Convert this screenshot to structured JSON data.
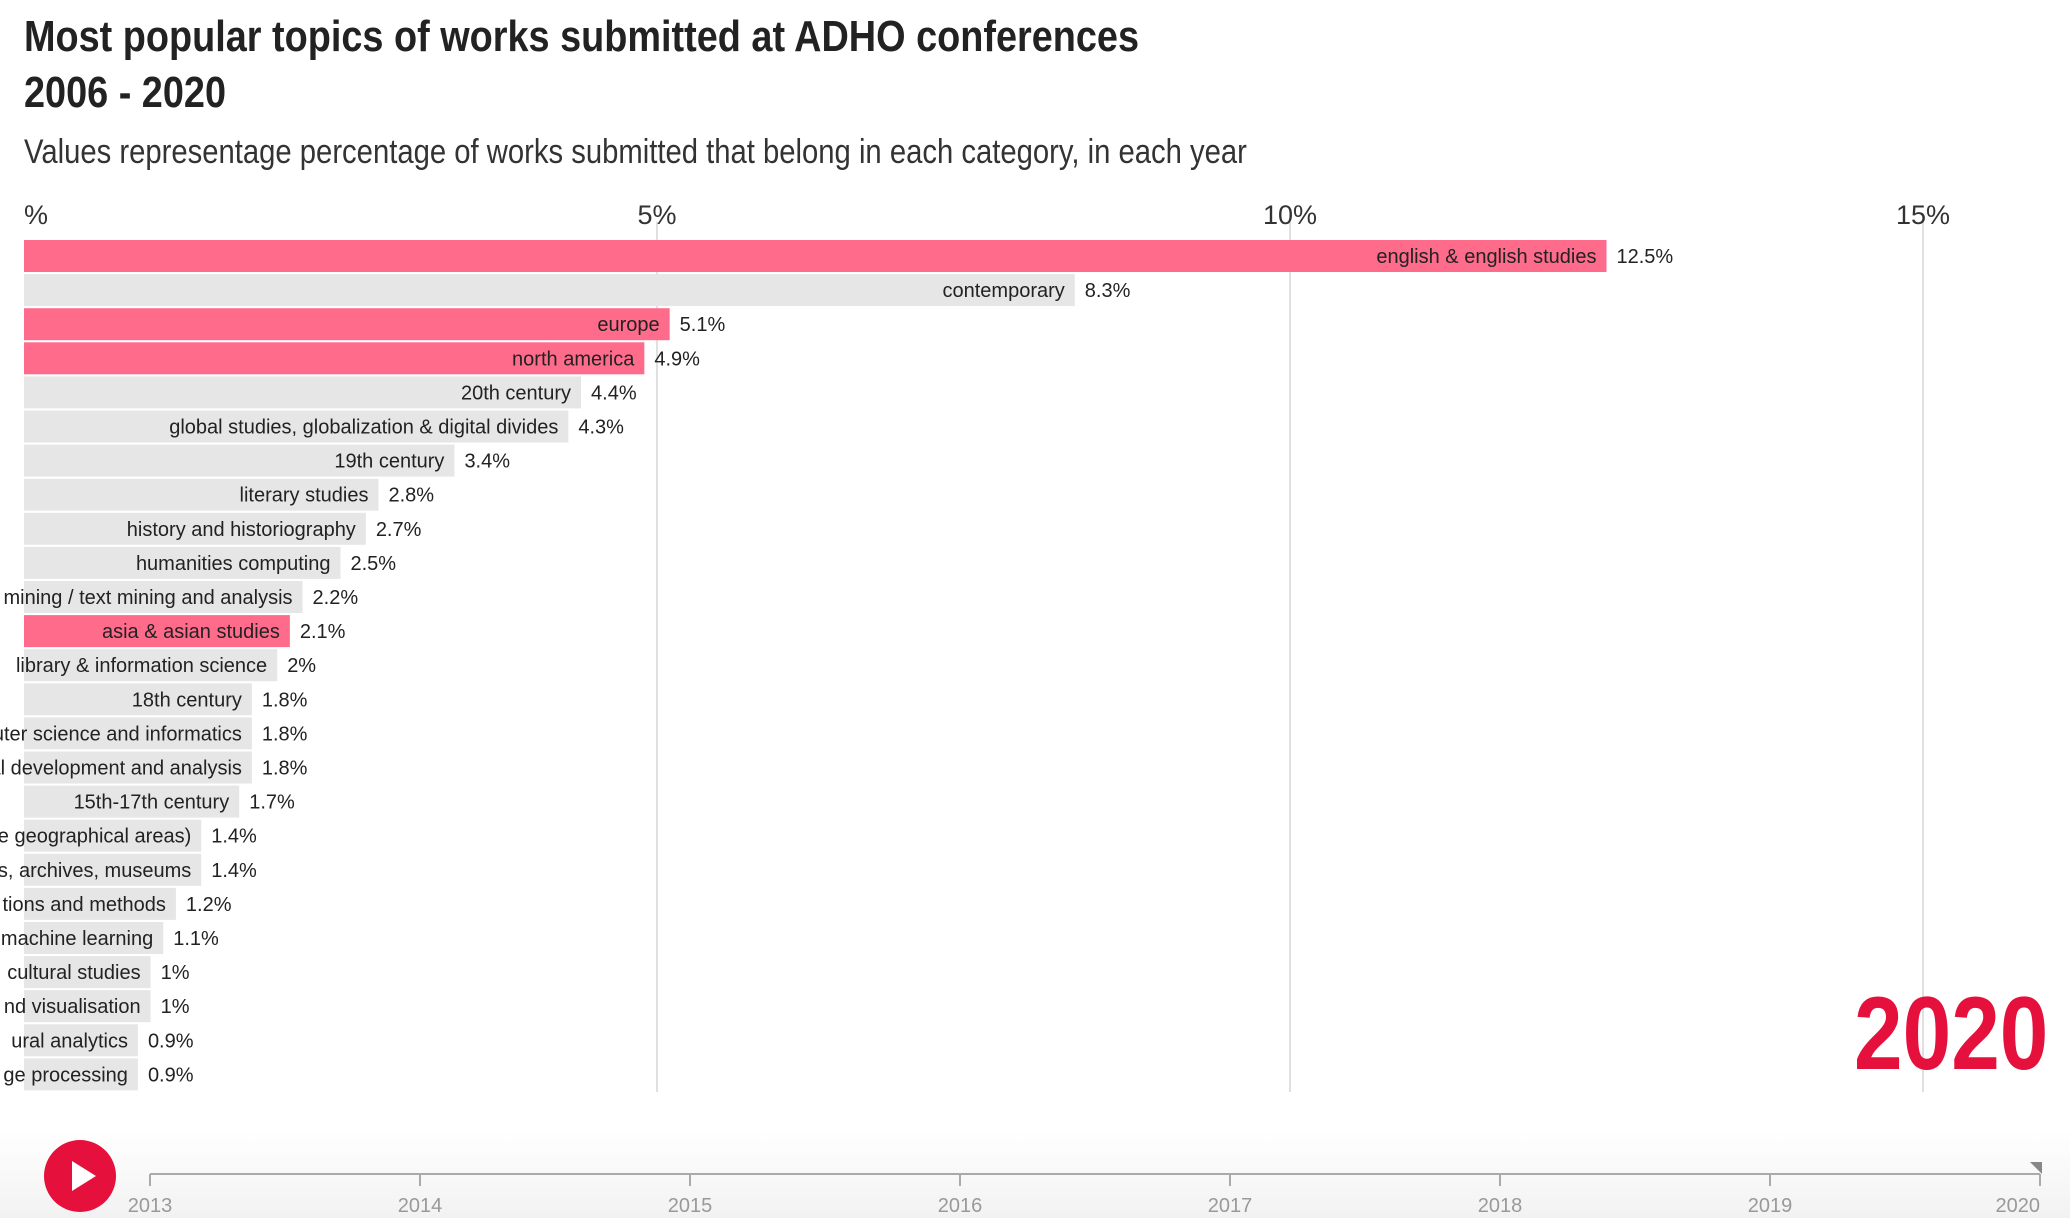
{
  "header": {
    "title": "Most popular topics of works submitted at ADHO conferences",
    "subtitle": "2006 - 2020",
    "note": "Values representage percentage of works submitted that belong in each category, in each year"
  },
  "current_year": "2020",
  "colors": {
    "highlight": "#ff6b8b",
    "default": "#e6e6e6",
    "accent": "#e6103d"
  },
  "controls": {
    "play_icon": "play-icon"
  },
  "timeline": {
    "years": [
      "2013",
      "2014",
      "2015",
      "2016",
      "2017",
      "2018",
      "2019",
      "2020"
    ]
  },
  "chart_data": {
    "type": "bar",
    "orientation": "horizontal",
    "title": "Most popular topics of works submitted at ADHO conferences",
    "subtitle": "2006 - 2020",
    "unit": "%",
    "xlim": [
      0,
      16
    ],
    "x_ticks": [
      {
        "value": 0,
        "label": "%"
      },
      {
        "value": 5,
        "label": "5%"
      },
      {
        "value": 10,
        "label": "10%"
      },
      {
        "value": 15,
        "label": "15%"
      }
    ],
    "grid": true,
    "bars": [
      {
        "label": "english & english studies",
        "value": 12.5,
        "value_label": "12.5%",
        "highlight": true
      },
      {
        "label": "contemporary",
        "value": 8.3,
        "value_label": "8.3%",
        "highlight": false
      },
      {
        "label": "europe",
        "value": 5.1,
        "value_label": "5.1%",
        "highlight": true
      },
      {
        "label": "north america",
        "value": 4.9,
        "value_label": "4.9%",
        "highlight": true
      },
      {
        "label": "20th century",
        "value": 4.4,
        "value_label": "4.4%",
        "highlight": false
      },
      {
        "label": "global studies, globalization & digital divides",
        "value": 4.3,
        "value_label": "4.3%",
        "highlight": false
      },
      {
        "label": "19th century",
        "value": 3.4,
        "value_label": "3.4%",
        "highlight": false
      },
      {
        "label": "literary studies",
        "value": 2.8,
        "value_label": "2.8%",
        "highlight": false
      },
      {
        "label": "history and historiography",
        "value": 2.7,
        "value_label": "2.7%",
        "highlight": false
      },
      {
        "label": "humanities computing",
        "value": 2.5,
        "value_label": "2.5%",
        "highlight": false
      },
      {
        "label": "a mining / text mining and analysis",
        "value": 2.2,
        "value_label": "2.2%",
        "highlight": false
      },
      {
        "label": "asia & asian studies",
        "value": 2.1,
        "value_label": "2.1%",
        "highlight": true
      },
      {
        "label": "library & information science",
        "value": 2.0,
        "value_label": "2%",
        "highlight": false
      },
      {
        "label": "18th century",
        "value": 1.8,
        "value_label": "1.8%",
        "highlight": false
      },
      {
        "label": "uter science and informatics",
        "value": 1.8,
        "value_label": "1.8%",
        "highlight": false
      },
      {
        "label": "al development and analysis",
        "value": 1.8,
        "value_label": "1.8%",
        "highlight": false
      },
      {
        "label": "15th-17th century",
        "value": 1.7,
        "value_label": "1.7%",
        "highlight": false
      },
      {
        "label": "e geographical areas)",
        "value": 1.4,
        "value_label": "1.4%",
        "highlight": false
      },
      {
        "label": "s, archives, museums",
        "value": 1.4,
        "value_label": "1.4%",
        "highlight": false
      },
      {
        "label": "tions and methods",
        "value": 1.2,
        "value_label": "1.2%",
        "highlight": false
      },
      {
        "label": "machine learning",
        "value": 1.1,
        "value_label": "1.1%",
        "highlight": false
      },
      {
        "label": "cultural studies",
        "value": 1.0,
        "value_label": "1%",
        "highlight": false
      },
      {
        "label": "nd visualisation",
        "value": 1.0,
        "value_label": "1%",
        "highlight": false
      },
      {
        "label": "ural analytics",
        "value": 0.9,
        "value_label": "0.9%",
        "highlight": false
      },
      {
        "label": "ge processing",
        "value": 0.9,
        "value_label": "0.9%",
        "highlight": false
      }
    ]
  }
}
